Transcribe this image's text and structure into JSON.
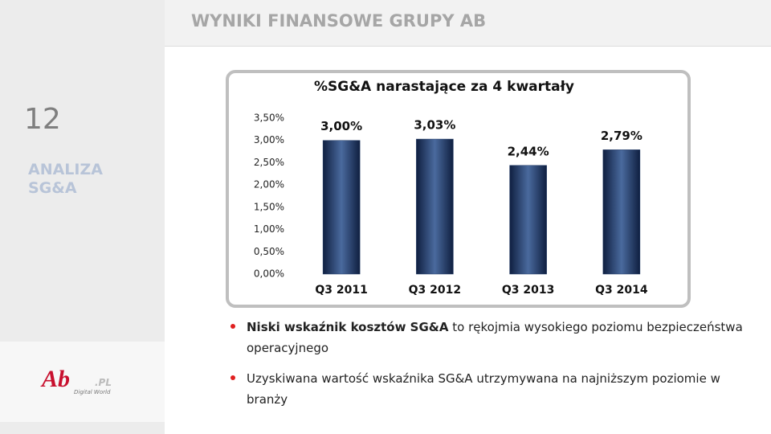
{
  "header": {
    "title": "WYNIKI FINANSOWE GRUPY AB"
  },
  "sidebar": {
    "page_number": "12",
    "section": [
      "ANALIZA",
      "SG&A"
    ]
  },
  "logo": {
    "brand": "Ab",
    "suffix": ".PL",
    "tagline": "Digital World"
  },
  "chart_data": {
    "type": "bar",
    "title": "%SG&A narastające za 4 kwartały",
    "categories": [
      "Q3 2011",
      "Q3 2012",
      "Q3 2013",
      "Q3 2014"
    ],
    "values": [
      3.0,
      3.03,
      2.44,
      2.79
    ],
    "value_labels": [
      "3,00%",
      "3,03%",
      "2,44%",
      "2,79%"
    ],
    "color": "#1f3864",
    "ylim": [
      0,
      3.5
    ],
    "yticks": [
      {
        "value": 0,
        "label": "0,00%"
      },
      {
        "value": 0.5,
        "label": "0,50%"
      },
      {
        "value": 1,
        "label": "1,00%"
      },
      {
        "value": 1.5,
        "label": "1,50%"
      },
      {
        "value": 2,
        "label": "2,00%"
      },
      {
        "value": 2.5,
        "label": "2,50%"
      },
      {
        "value": 3,
        "label": "3,00%"
      },
      {
        "value": 3.5,
        "label": "3,50%"
      }
    ],
    "grid": false
  },
  "bullets": [
    {
      "bold": "Niski wskaźnik kosztów SG&A",
      "text": " to rękojmia wysokiego poziomu bezpieczeństwa operacyjnego"
    },
    {
      "text": "Uzyskiwana wartość wskaźnika SG&A utrzymywana na najniższym poziomie w branży"
    }
  ]
}
